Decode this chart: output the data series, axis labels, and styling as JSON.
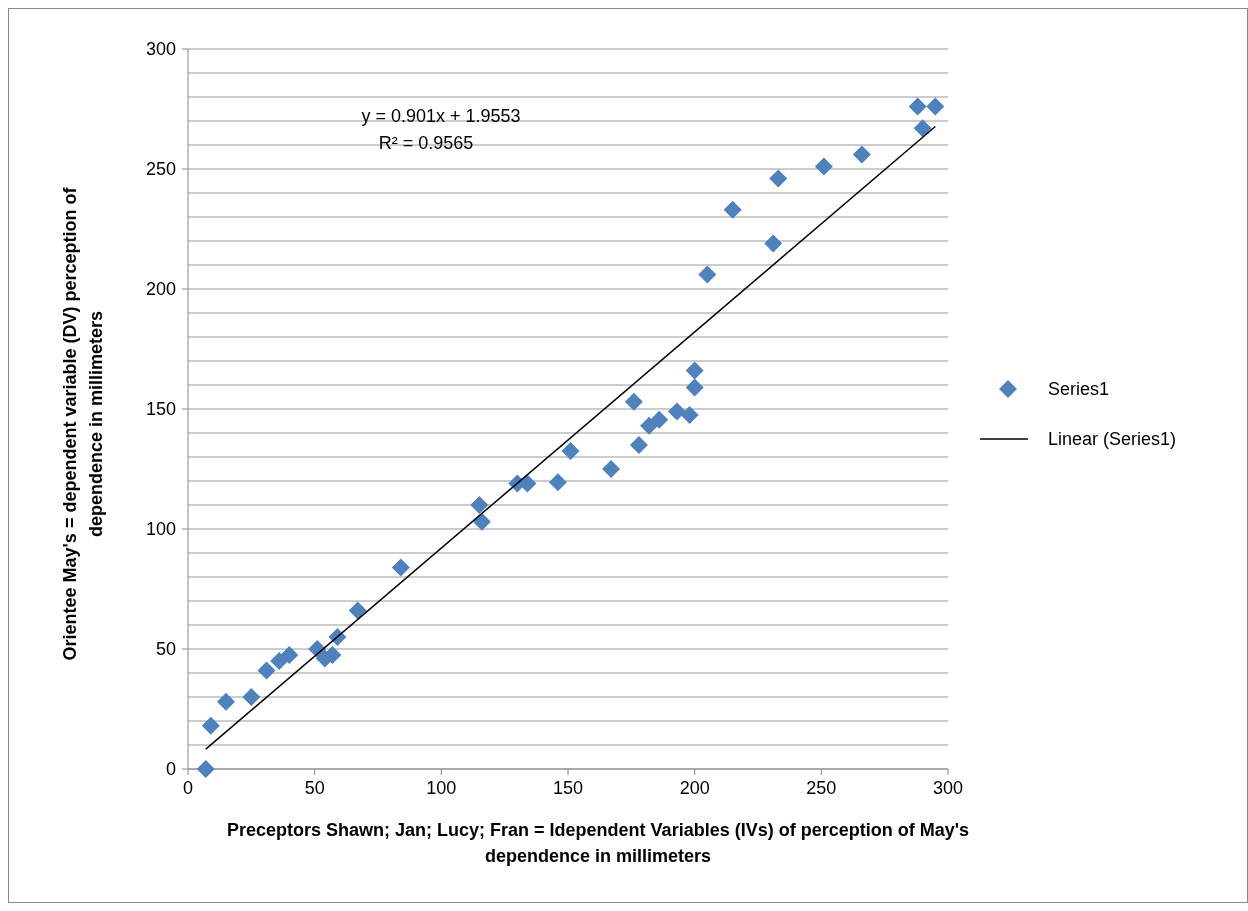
{
  "chart_data": {
    "type": "scatter",
    "xlabel": "Preceptors Shawn; Jan; Lucy; Fran = Idependent Variables (IVs) of perception of May's dependence in millimeters",
    "ylabel": "Orientee May's = dependent variable (DV) perception of dependence in millimeters",
    "annotations": [
      "y = 0.901x + 1.9553",
      "R² = 0.9565"
    ],
    "xlim": [
      0,
      300
    ],
    "xticks": [
      0,
      50,
      100,
      150,
      200,
      250,
      300
    ],
    "ylim": [
      0,
      300
    ],
    "yticks": [
      0,
      {
        "value": 10,
        "label": null
      },
      {
        "value": 20,
        "label": null
      },
      {
        "value": 30,
        "label": null
      },
      {
        "value": 40,
        "label": null
      },
      50,
      {
        "value": 60,
        "label": null
      },
      {
        "value": 70,
        "label": null
      },
      {
        "value": 80,
        "label": null
      },
      {
        "value": 90,
        "label": null
      },
      100,
      {
        "value": 110,
        "label": null
      },
      {
        "value": 120,
        "label": null
      },
      {
        "value": 130,
        "label": null
      },
      {
        "value": 140,
        "label": null
      },
      150,
      {
        "value": 160,
        "label": null
      },
      {
        "value": 170,
        "label": null
      },
      {
        "value": 180,
        "label": null
      },
      {
        "value": 190,
        "label": null
      },
      200,
      {
        "value": 210,
        "label": null
      },
      {
        "value": 220,
        "label": null
      },
      {
        "value": 230,
        "label": null
      },
      {
        "value": 240,
        "label": null
      },
      250,
      {
        "value": 260,
        "label": null
      },
      {
        "value": 270,
        "label": null
      },
      {
        "value": 280,
        "label": null
      },
      {
        "value": 290,
        "label": null
      },
      300
    ],
    "grid": "y",
    "legend": "right",
    "marker": "diamond",
    "series": [
      {
        "name": "Series1",
        "color": "#4f81bd",
        "x": [
          7,
          9,
          15,
          25,
          31,
          36,
          40,
          51,
          54,
          57,
          59,
          67,
          84,
          115,
          116,
          130,
          134,
          146,
          151,
          167,
          176,
          178,
          182,
          186,
          193,
          198,
          200,
          200,
          205,
          215,
          231,
          233,
          251,
          266,
          288,
          290,
          295
        ],
        "values": [
          0,
          18,
          28,
          30,
          41,
          45,
          47.5,
          50,
          46,
          47.5,
          55,
          66,
          84,
          110,
          103,
          119,
          119,
          119.5,
          132.5,
          125,
          153,
          135,
          143,
          145.5,
          149,
          147.5,
          159,
          166,
          206,
          233,
          219,
          246,
          251,
          256,
          276,
          267,
          276
        ]
      },
      {
        "name": "Linear (Series1)",
        "type": "line",
        "color": "#000000",
        "marker": "none",
        "x": [
          7,
          295
        ],
        "values": [
          8.3,
          267.7
        ]
      }
    ]
  }
}
